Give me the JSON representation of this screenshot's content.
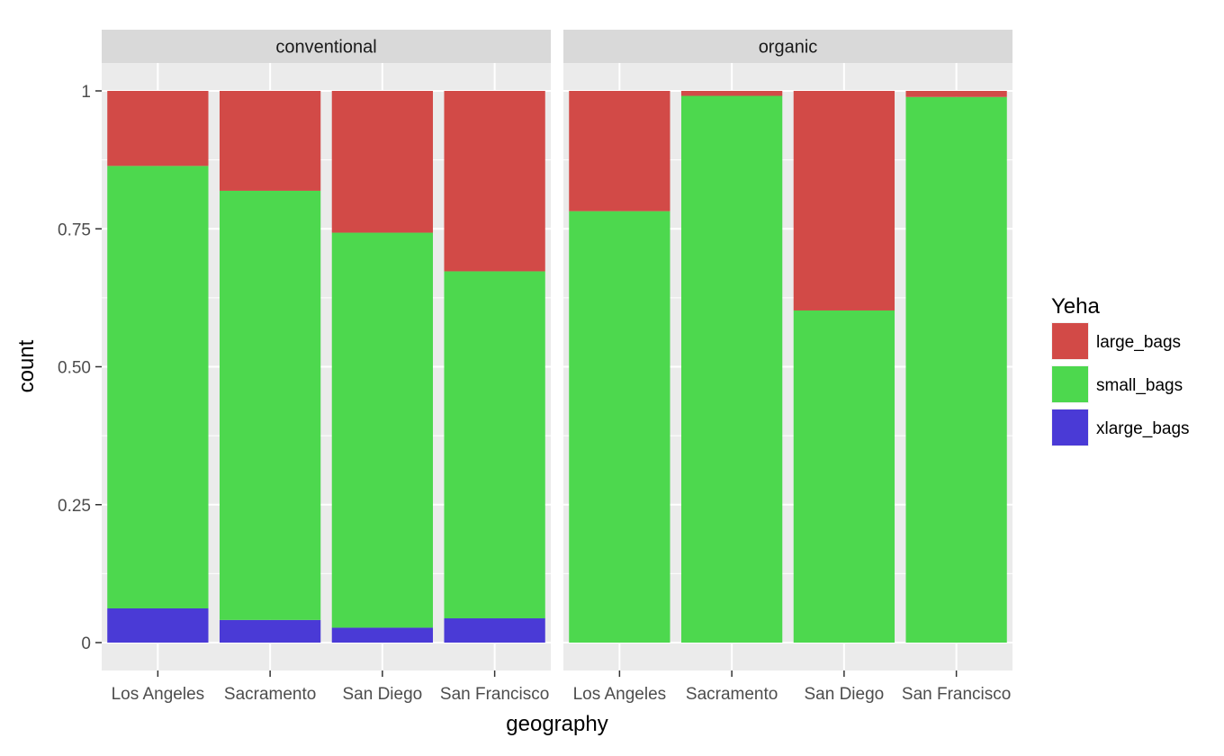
{
  "chart_data": {
    "type": "bar",
    "stacked": true,
    "position": "fill",
    "facet_variable": "type",
    "panels": [
      "conventional",
      "organic"
    ],
    "categories": [
      "Los Angeles",
      "Sacramento",
      "San Diego",
      "San Francisco"
    ],
    "xlabel": "geography",
    "ylabel": "count",
    "ylim": [
      0,
      1
    ],
    "yticks": [
      0,
      0.25,
      0.5,
      0.75,
      1
    ],
    "ytick_labels": [
      "0",
      "0.25",
      "0.50",
      "0.75",
      "1"
    ],
    "grid": true,
    "legend": {
      "title": "Yeha",
      "placement": "right"
    },
    "series": [
      {
        "name": "large_bags",
        "color": "#D24A47"
      },
      {
        "name": "small_bags",
        "color": "#4DD84E"
      },
      {
        "name": "xlarge_bags",
        "color": "#4A3AD6"
      }
    ],
    "data": {
      "conventional": {
        "xlarge_bags": [
          0.062,
          0.041,
          0.027,
          0.044
        ],
        "small_bags": [
          0.802,
          0.778,
          0.716,
          0.629
        ],
        "large_bags": [
          0.136,
          0.181,
          0.257,
          0.327
        ]
      },
      "organic": {
        "xlarge_bags": [
          0.0,
          0.0,
          0.0,
          0.0
        ],
        "small_bags": [
          0.782,
          0.991,
          0.602,
          0.989
        ],
        "large_bags": [
          0.218,
          0.009,
          0.398,
          0.011
        ]
      }
    }
  }
}
